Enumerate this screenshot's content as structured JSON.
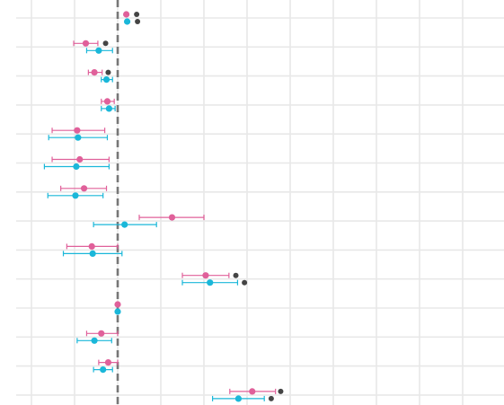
{
  "chart_data": {
    "type": "scatter",
    "grid": true,
    "reference_line": {
      "x": 0,
      "style": "dashed"
    },
    "xlim": [
      -1.0,
      4.5
    ],
    "rows": 14,
    "colors": {
      "series_a": "#e0609a",
      "series_b": "#1ab7d9",
      "significance": "#444444",
      "grid": "#e8e8e8",
      "zero_line": "#777777"
    },
    "series": [
      {
        "key": "a",
        "color": "#e0609a",
        "points": [
          {
            "row": 0,
            "x": 0.1,
            "lo": 0.1,
            "hi": 0.1
          },
          {
            "row": 1,
            "x": -0.37,
            "lo": -0.51,
            "hi": -0.23
          },
          {
            "row": 2,
            "x": -0.27,
            "lo": -0.34,
            "hi": -0.18
          },
          {
            "row": 3,
            "x": -0.12,
            "lo": -0.19,
            "hi": -0.04
          },
          {
            "row": 4,
            "x": -0.47,
            "lo": -0.76,
            "hi": -0.15
          },
          {
            "row": 5,
            "x": -0.44,
            "lo": -0.76,
            "hi": -0.1
          },
          {
            "row": 6,
            "x": -0.39,
            "lo": -0.66,
            "hi": -0.13
          },
          {
            "row": 7,
            "x": 0.63,
            "lo": 0.25,
            "hi": 1.0
          },
          {
            "row": 8,
            "x": -0.3,
            "lo": -0.59,
            "hi": 0.0
          },
          {
            "row": 9,
            "x": 1.02,
            "lo": 0.75,
            "hi": 1.29
          },
          {
            "row": 10,
            "x": 0.0,
            "lo": 0.0,
            "hi": 0.0
          },
          {
            "row": 11,
            "x": -0.19,
            "lo": -0.36,
            "hi": 0.0
          },
          {
            "row": 12,
            "x": -0.11,
            "lo": -0.22,
            "hi": 0.0
          },
          {
            "row": 13,
            "x": 1.56,
            "lo": 1.3,
            "hi": 1.83
          }
        ]
      },
      {
        "key": "b",
        "color": "#1ab7d9",
        "points": [
          {
            "row": 0,
            "x": 0.11,
            "lo": 0.11,
            "hi": 0.11
          },
          {
            "row": 1,
            "x": -0.22,
            "lo": -0.36,
            "hi": -0.06
          },
          {
            "row": 2,
            "x": -0.13,
            "lo": -0.19,
            "hi": -0.06
          },
          {
            "row": 3,
            "x": -0.1,
            "lo": -0.19,
            "hi": -0.03
          },
          {
            "row": 4,
            "x": -0.46,
            "lo": -0.8,
            "hi": -0.12
          },
          {
            "row": 5,
            "x": -0.48,
            "lo": -0.85,
            "hi": -0.1
          },
          {
            "row": 6,
            "x": -0.49,
            "lo": -0.81,
            "hi": -0.17
          },
          {
            "row": 7,
            "x": 0.08,
            "lo": -0.28,
            "hi": 0.45
          },
          {
            "row": 8,
            "x": -0.29,
            "lo": -0.63,
            "hi": 0.05
          },
          {
            "row": 9,
            "x": 1.07,
            "lo": 0.75,
            "hi": 1.39
          },
          {
            "row": 10,
            "x": 0.0,
            "lo": 0.0,
            "hi": 0.0
          },
          {
            "row": 11,
            "x": -0.27,
            "lo": -0.47,
            "hi": -0.07
          },
          {
            "row": 12,
            "x": -0.17,
            "lo": -0.28,
            "hi": -0.06
          },
          {
            "row": 13,
            "x": 1.4,
            "lo": 1.1,
            "hi": 1.7
          }
        ]
      }
    ],
    "significance_markers": [
      {
        "row": 0,
        "series": "a",
        "x": 0.22
      },
      {
        "row": 0,
        "series": "b",
        "x": 0.23
      },
      {
        "row": 1,
        "series": "a",
        "x": -0.14
      },
      {
        "row": 2,
        "series": "a",
        "x": -0.11
      },
      {
        "row": 9,
        "series": "a",
        "x": 1.37
      },
      {
        "row": 9,
        "series": "b",
        "x": 1.47
      },
      {
        "row": 13,
        "series": "a",
        "x": 1.89
      },
      {
        "row": 13,
        "series": "b",
        "x": 1.78
      }
    ]
  }
}
